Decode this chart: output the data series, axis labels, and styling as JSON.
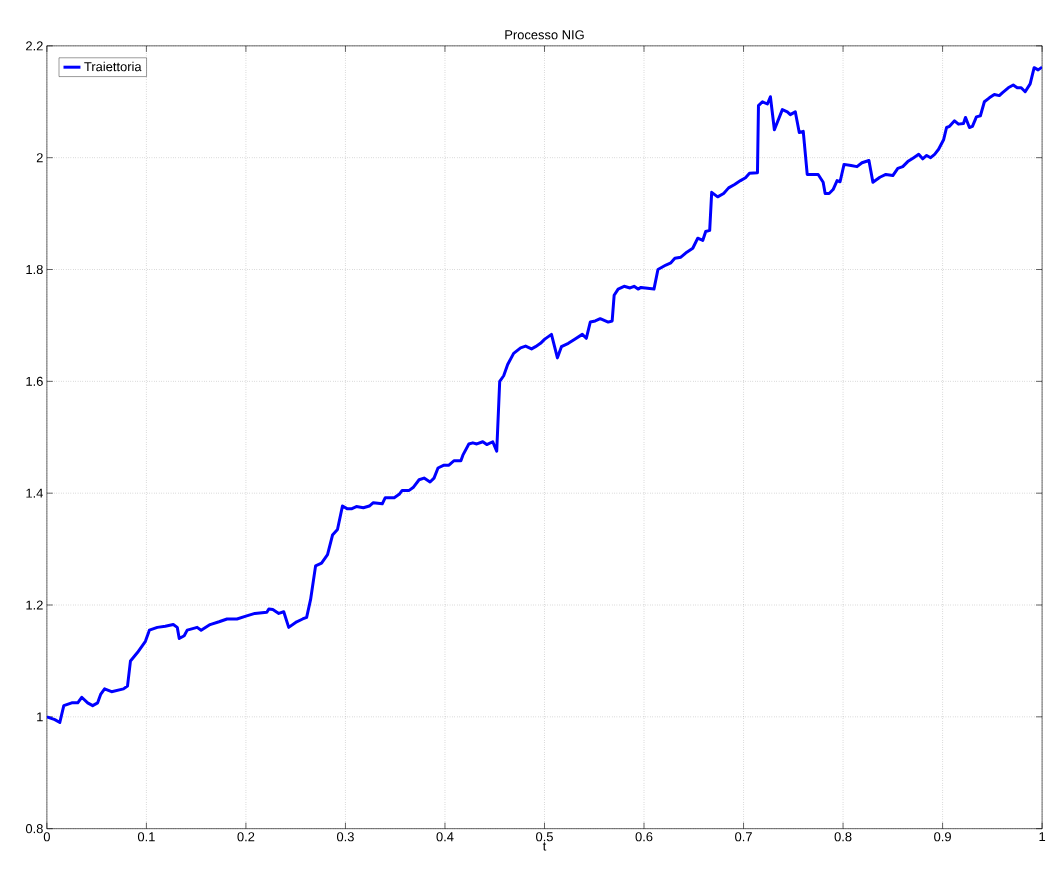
{
  "chart_data": {
    "type": "line",
    "title": "Processo NIG",
    "xlabel": "t",
    "x": [
      0,
      0.008,
      0.013,
      0.017,
      0.025,
      0.031,
      0.035,
      0.041,
      0.046,
      0.051,
      0.054,
      0.058,
      0.065,
      0.077,
      0.081,
      0.084,
      0.091,
      0.099,
      0.103,
      0.111,
      0.119,
      0.127,
      0.131,
      0.133,
      0.138,
      0.141,
      0.151,
      0.155,
      0.164,
      0.173,
      0.181,
      0.191,
      0.2,
      0.209,
      0.221,
      0.223,
      0.227,
      0.233,
      0.238,
      0.243,
      0.251,
      0.257,
      0.261,
      0.265,
      0.27,
      0.276,
      0.282,
      0.287,
      0.292,
      0.297,
      0.302,
      0.306,
      0.311,
      0.318,
      0.324,
      0.328,
      0.337,
      0.34,
      0.349,
      0.354,
      0.357,
      0.364,
      0.368,
      0.374,
      0.379,
      0.385,
      0.389,
      0.393,
      0.399,
      0.404,
      0.409,
      0.416,
      0.418,
      0.424,
      0.428,
      0.432,
      0.438,
      0.442,
      0.448,
      0.452,
      0.455,
      0.459,
      0.463,
      0.469,
      0.476,
      0.481,
      0.487,
      0.491,
      0.496,
      0.5,
      0.507,
      0.513,
      0.517,
      0.524,
      0.53,
      0.538,
      0.542,
      0.546,
      0.551,
      0.556,
      0.564,
      0.568,
      0.57,
      0.574,
      0.58,
      0.586,
      0.59,
      0.594,
      0.597,
      0.61,
      0.614,
      0.622,
      0.627,
      0.631,
      0.637,
      0.643,
      0.649,
      0.654,
      0.659,
      0.662,
      0.666,
      0.668,
      0.674,
      0.68,
      0.685,
      0.691,
      0.697,
      0.702,
      0.706,
      0.714,
      0.715,
      0.719,
      0.724,
      0.727,
      0.731,
      0.739,
      0.744,
      0.747,
      0.752,
      0.756,
      0.76,
      0.764,
      0.775,
      0.78,
      0.782,
      0.786,
      0.79,
      0.794,
      0.797,
      0.801,
      0.808,
      0.814,
      0.819,
      0.826,
      0.83,
      0.837,
      0.843,
      0.85,
      0.855,
      0.86,
      0.865,
      0.871,
      0.876,
      0.88,
      0.884,
      0.888,
      0.892,
      0.896,
      0.901,
      0.904,
      0.907,
      0.912,
      0.916,
      0.921,
      0.923,
      0.927,
      0.93,
      0.934,
      0.938,
      0.942,
      0.947,
      0.952,
      0.957,
      0.96,
      0.966,
      0.971,
      0.975,
      0.979,
      0.983,
      0.988,
      0.992,
      0.996,
      1.0
    ],
    "series": [
      {
        "name": "Traiettoria",
        "color": "#0000ff",
        "values": [
          1.0,
          0.995,
          0.99,
          1.02,
          1.025,
          1.025,
          1.035,
          1.025,
          1.02,
          1.025,
          1.04,
          1.05,
          1.045,
          1.05,
          1.055,
          1.1,
          1.115,
          1.135,
          1.155,
          1.16,
          1.162,
          1.165,
          1.16,
          1.14,
          1.145,
          1.155,
          1.16,
          1.155,
          1.165,
          1.17,
          1.175,
          1.175,
          1.18,
          1.185,
          1.187,
          1.193,
          1.192,
          1.185,
          1.188,
          1.16,
          1.17,
          1.175,
          1.178,
          1.21,
          1.27,
          1.275,
          1.29,
          1.325,
          1.335,
          1.377,
          1.372,
          1.372,
          1.376,
          1.374,
          1.377,
          1.383,
          1.381,
          1.392,
          1.392,
          1.398,
          1.405,
          1.405,
          1.41,
          1.424,
          1.427,
          1.42,
          1.427,
          1.445,
          1.45,
          1.45,
          1.458,
          1.458,
          1.468,
          1.488,
          1.49,
          1.488,
          1.492,
          1.487,
          1.492,
          1.475,
          1.6,
          1.61,
          1.63,
          1.65,
          1.66,
          1.663,
          1.658,
          1.662,
          1.668,
          1.675,
          1.684,
          1.642,
          1.662,
          1.668,
          1.675,
          1.684,
          1.677,
          1.706,
          1.708,
          1.712,
          1.706,
          1.708,
          1.754,
          1.765,
          1.77,
          1.767,
          1.77,
          1.765,
          1.768,
          1.765,
          1.8,
          1.808,
          1.812,
          1.82,
          1.822,
          1.831,
          1.838,
          1.856,
          1.852,
          1.868,
          1.87,
          1.938,
          1.93,
          1.936,
          1.946,
          1.952,
          1.959,
          1.964,
          1.972,
          1.973,
          2.093,
          2.1,
          2.096,
          2.109,
          2.05,
          2.086,
          2.082,
          2.077,
          2.082,
          2.045,
          2.047,
          1.97,
          1.97,
          1.956,
          1.936,
          1.936,
          1.943,
          1.959,
          1.957,
          1.988,
          1.986,
          1.984,
          1.991,
          1.995,
          1.956,
          1.965,
          1.97,
          1.968,
          1.981,
          1.984,
          1.993,
          2.0,
          2.006,
          1.998,
          2.004,
          2.0,
          2.006,
          2.015,
          2.032,
          2.054,
          2.056,
          2.066,
          2.06,
          2.061,
          2.072,
          2.054,
          2.056,
          2.073,
          2.075,
          2.1,
          2.107,
          2.113,
          2.111,
          2.116,
          2.125,
          2.13,
          2.125,
          2.125,
          2.118,
          2.132,
          2.161,
          2.157,
          2.162
        ]
      }
    ],
    "xlim": [
      0,
      1
    ],
    "ylim": [
      0.8,
      2.2
    ],
    "xticks": [
      0,
      0.1,
      0.2,
      0.3,
      0.4,
      0.5,
      0.6,
      0.7,
      0.8,
      0.9,
      1
    ],
    "yticks": [
      0.8,
      1,
      1.2,
      1.4,
      1.6,
      1.8,
      2,
      2.2
    ],
    "grid": true,
    "legend": "top left",
    "line_style": "solid"
  }
}
